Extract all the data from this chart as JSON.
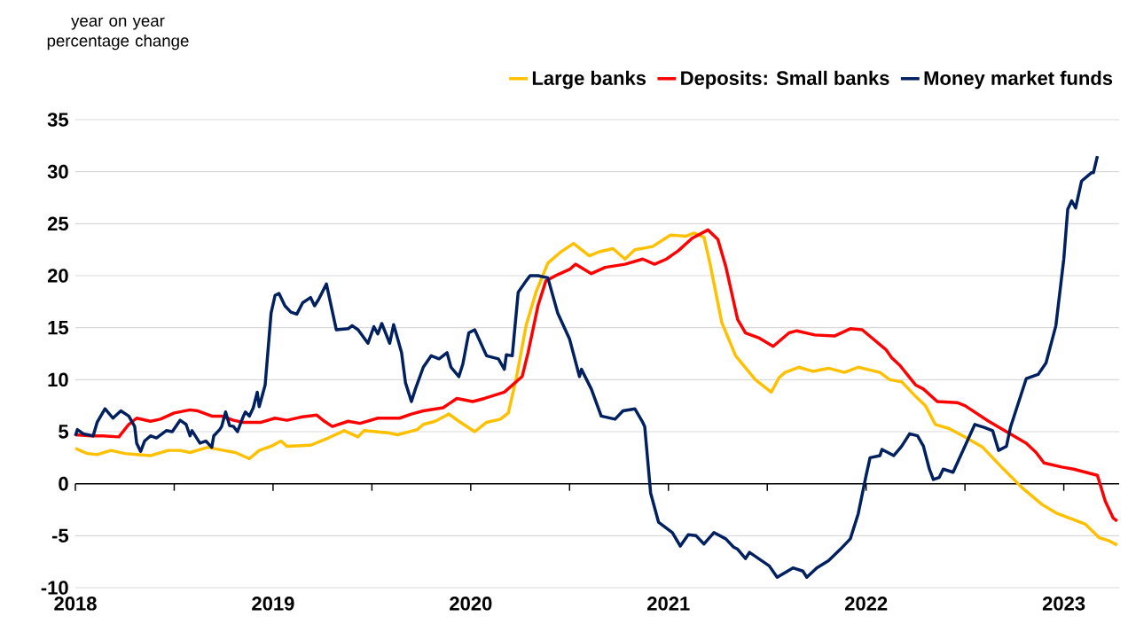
{
  "chart_data": {
    "type": "line",
    "ylabel": "year on year percentage change",
    "xlim": [
      2018,
      2023.28
    ],
    "ylim": [
      -10,
      35
    ],
    "xticks": [
      2018,
      {
        "value": 2018.5,
        "label": null
      },
      2019,
      {
        "value": 2019.5,
        "label": null
      },
      2020,
      {
        "value": 2020.5,
        "label": null
      },
      2021,
      {
        "value": 2021.5,
        "label": null
      },
      2022,
      {
        "value": 2022.5,
        "label": null
      },
      2023
    ],
    "yticks": [
      -10,
      -5,
      0,
      5,
      10,
      15,
      20,
      25,
      30,
      35
    ],
    "grid": "y",
    "legend": "top right",
    "line_style": "solid",
    "series": [
      {
        "name": "Large banks",
        "color": "#ffc000",
        "x": [
          2018.0,
          2018.06,
          2018.11,
          2018.18,
          2018.25,
          2018.31,
          2018.38,
          2018.47,
          2018.53,
          2018.58,
          2018.67,
          2018.75,
          2018.81,
          2018.88,
          2018.93,
          2018.99,
          2019.04,
          2019.07,
          2019.19,
          2019.28,
          2019.36,
          2019.43,
          2019.46,
          2019.58,
          2019.63,
          2019.73,
          2019.76,
          2019.82,
          2019.89,
          2019.94,
          2020.02,
          2020.08,
          2020.15,
          2020.19,
          2020.23,
          2020.28,
          2020.33,
          2020.39,
          2020.45,
          2020.52,
          2020.6,
          2020.65,
          2020.72,
          2020.78,
          2020.83,
          2020.92,
          2021.01,
          2021.09,
          2021.13,
          2021.18,
          2021.21,
          2021.27,
          2021.34,
          2021.44,
          2021.52,
          2021.56,
          2021.59,
          2021.66,
          2021.73,
          2021.81,
          2021.89,
          2021.96,
          2022.07,
          2022.12,
          2022.18,
          2022.25,
          2022.3,
          2022.35,
          2022.42,
          2022.49,
          2022.59,
          2022.69,
          2022.79,
          2022.89,
          2022.96,
          2023.11,
          2023.18,
          2023.23,
          2023.27
        ],
        "values": [
          3.4,
          2.9,
          2.8,
          3.2,
          2.9,
          2.8,
          2.7,
          3.2,
          3.2,
          3.0,
          3.5,
          3.2,
          3.0,
          2.4,
          3.2,
          3.6,
          4.1,
          3.6,
          3.7,
          4.4,
          5.1,
          4.5,
          5.1,
          4.9,
          4.7,
          5.2,
          5.7,
          6.0,
          6.7,
          6.0,
          5.0,
          5.9,
          6.2,
          6.8,
          10.1,
          15.2,
          18.4,
          21.2,
          22.2,
          23.1,
          21.9,
          22.3,
          22.6,
          21.6,
          22.5,
          22.8,
          23.9,
          23.8,
          24.1,
          23.7,
          21.2,
          15.5,
          12.3,
          10.0,
          8.8,
          10.2,
          10.7,
          11.2,
          10.8,
          11.1,
          10.7,
          11.2,
          10.7,
          10.0,
          9.8,
          8.4,
          7.5,
          5.7,
          5.3,
          4.6,
          3.5,
          1.5,
          -0.4,
          -2.0,
          -2.8,
          -3.9,
          -5.2,
          -5.5,
          -5.9
        ]
      },
      {
        "name": "Deposits: Small banks",
        "color": "#ff0000",
        "x": [
          2018.0,
          2018.08,
          2018.14,
          2018.22,
          2018.27,
          2018.31,
          2018.38,
          2018.43,
          2018.5,
          2018.58,
          2018.62,
          2018.69,
          2018.74,
          2018.8,
          2018.85,
          2018.94,
          2019.01,
          2019.07,
          2019.14,
          2019.22,
          2019.26,
          2019.3,
          2019.38,
          2019.44,
          2019.53,
          2019.64,
          2019.7,
          2019.76,
          2019.86,
          2019.93,
          2020.01,
          2020.07,
          2020.17,
          2020.26,
          2020.29,
          2020.34,
          2020.38,
          2020.44,
          2020.5,
          2020.53,
          2020.61,
          2020.68,
          2020.78,
          2020.87,
          2020.93,
          2020.99,
          2021.05,
          2021.12,
          2021.2,
          2021.25,
          2021.29,
          2021.35,
          2021.39,
          2021.46,
          2021.53,
          2021.61,
          2021.65,
          2021.74,
          2021.84,
          2021.92,
          2021.98,
          2022.1,
          2022.13,
          2022.17,
          2022.25,
          2022.29,
          2022.36,
          2022.46,
          2022.5,
          2022.62,
          2022.81,
          2022.86,
          2022.9,
          2022.99,
          2023.05,
          2023.17,
          2023.21,
          2023.25,
          2023.27
        ],
        "values": [
          4.7,
          4.6,
          4.6,
          4.5,
          5.7,
          6.3,
          6.0,
          6.2,
          6.8,
          7.1,
          7.0,
          6.5,
          6.5,
          6.1,
          5.9,
          5.9,
          6.3,
          6.1,
          6.4,
          6.6,
          6.0,
          5.5,
          6.0,
          5.8,
          6.3,
          6.3,
          6.7,
          7.0,
          7.3,
          8.2,
          7.9,
          8.2,
          8.8,
          10.3,
          12.6,
          17.1,
          19.5,
          20.1,
          20.6,
          21.1,
          20.2,
          20.8,
          21.1,
          21.6,
          21.1,
          21.6,
          22.4,
          23.6,
          24.4,
          23.5,
          20.9,
          15.8,
          14.5,
          14.0,
          13.2,
          14.5,
          14.7,
          14.3,
          14.2,
          14.9,
          14.8,
          12.9,
          12.1,
          11.4,
          9.5,
          9.1,
          7.9,
          7.8,
          7.5,
          6.0,
          3.9,
          3.0,
          2.0,
          1.6,
          1.4,
          0.8,
          -1.7,
          -3.3,
          -3.6
        ]
      },
      {
        "name": "Money market funds",
        "color": "#002060",
        "x": [
          2018.0,
          2018.01,
          2018.04,
          2018.09,
          2018.11,
          2018.15,
          2018.19,
          2018.23,
          2018.27,
          2018.3,
          2018.31,
          2018.33,
          2018.35,
          2018.38,
          2018.41,
          2018.46,
          2018.49,
          2018.53,
          2018.56,
          2018.58,
          2018.59,
          2018.63,
          2018.66,
          2018.69,
          2018.7,
          2018.73,
          2018.74,
          2018.76,
          2018.78,
          2018.8,
          2018.82,
          2018.85,
          2018.86,
          2018.88,
          2018.9,
          2018.92,
          2018.93,
          2018.96,
          2018.99,
          2019.01,
          2019.03,
          2019.06,
          2019.09,
          2019.12,
          2019.15,
          2019.19,
          2019.21,
          2019.23,
          2019.27,
          2019.32,
          2019.38,
          2019.4,
          2019.43,
          2019.48,
          2019.51,
          2019.53,
          2019.55,
          2019.59,
          2019.61,
          2019.65,
          2019.67,
          2019.7,
          2019.72,
          2019.76,
          2019.8,
          2019.84,
          2019.88,
          2019.9,
          2019.94,
          2019.96,
          2019.99,
          2020.02,
          2020.08,
          2020.14,
          2020.17,
          2020.18,
          2020.21,
          2020.24,
          2020.28,
          2020.3,
          2020.34,
          2020.39,
          2020.44,
          2020.5,
          2020.55,
          2020.56,
          2020.61,
          2020.66,
          2020.73,
          2020.77,
          2020.83,
          2020.87,
          2020.88,
          2020.91,
          2020.95,
          2021.02,
          2021.06,
          2021.1,
          2021.14,
          2021.18,
          2021.23,
          2021.29,
          2021.33,
          2021.35,
          2021.39,
          2021.41,
          2021.51,
          2021.55,
          2021.63,
          2021.68,
          2021.7,
          2021.75,
          2021.81,
          2021.87,
          2021.92,
          2021.96,
          2022.0,
          2022.02,
          2022.07,
          2022.08,
          2022.14,
          2022.18,
          2022.22,
          2022.26,
          2022.29,
          2022.32,
          2022.34,
          2022.37,
          2022.39,
          2022.44,
          2022.55,
          2022.6,
          2022.64,
          2022.67,
          2022.71,
          2022.73,
          2022.81,
          2022.87,
          2022.91,
          2022.96,
          2023.0,
          2023.02,
          2023.04,
          2023.06,
          2023.09,
          2023.14,
          2023.15,
          2023.17
        ],
        "values": [
          4.6,
          5.2,
          4.8,
          4.6,
          5.9,
          7.2,
          6.3,
          7.0,
          6.5,
          5.5,
          3.9,
          3.1,
          4.1,
          4.6,
          4.4,
          5.1,
          5.0,
          6.1,
          5.7,
          4.6,
          5.1,
          3.9,
          4.1,
          3.5,
          4.6,
          5.2,
          5.5,
          6.9,
          5.6,
          5.5,
          5.0,
          6.5,
          6.9,
          6.5,
          7.3,
          8.8,
          7.4,
          9.5,
          16.4,
          18.1,
          18.3,
          17.1,
          16.5,
          16.3,
          17.4,
          17.9,
          17.1,
          17.7,
          19.2,
          14.8,
          14.9,
          15.2,
          14.8,
          13.5,
          15.1,
          14.4,
          15.4,
          13.5,
          15.3,
          12.6,
          9.7,
          7.9,
          9.1,
          11.2,
          12.3,
          12.0,
          12.6,
          11.2,
          10.3,
          11.5,
          14.5,
          14.8,
          12.3,
          12.0,
          11.0,
          12.4,
          12.3,
          18.4,
          19.5,
          20.0,
          20.0,
          19.8,
          16.4,
          13.9,
          10.3,
          11.0,
          9.1,
          6.5,
          6.2,
          7.0,
          7.2,
          5.9,
          5.5,
          -0.9,
          -3.7,
          -4.7,
          -6.0,
          -4.9,
          -5.0,
          -5.8,
          -4.7,
          -5.3,
          -6.1,
          -6.3,
          -7.2,
          -6.6,
          -7.9,
          -9.0,
          -8.1,
          -8.4,
          -9.0,
          -8.1,
          -7.4,
          -6.3,
          -5.3,
          -2.9,
          0.8,
          2.5,
          2.7,
          3.3,
          2.7,
          3.6,
          4.8,
          4.6,
          3.6,
          1.4,
          0.4,
          0.6,
          1.4,
          1.1,
          5.7,
          5.4,
          5.1,
          3.2,
          3.6,
          5.4,
          10.1,
          10.5,
          11.6,
          15.2,
          21.6,
          26.4,
          27.2,
          26.5,
          29.1,
          29.9,
          29.9,
          31.5
        ]
      }
    ]
  }
}
